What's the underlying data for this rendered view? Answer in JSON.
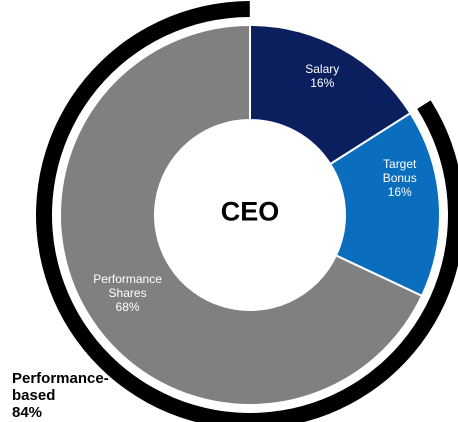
{
  "chart_data": {
    "type": "donut",
    "center_label": "CEO",
    "categories": [
      "Salary",
      "Target Bonus",
      "Performance Shares"
    ],
    "values": [
      16,
      16,
      68
    ],
    "value_labels": [
      "16%",
      "16%",
      "68%"
    ],
    "colors": [
      "#0b1f5e",
      "#0a6dbd",
      "#808080"
    ],
    "label_colors": [
      "#ffffff",
      "#ffffff",
      "#ffffff"
    ],
    "outer_ring": {
      "label": "Performance-based",
      "value": 84,
      "value_label": "84%",
      "color": "#000000"
    }
  }
}
